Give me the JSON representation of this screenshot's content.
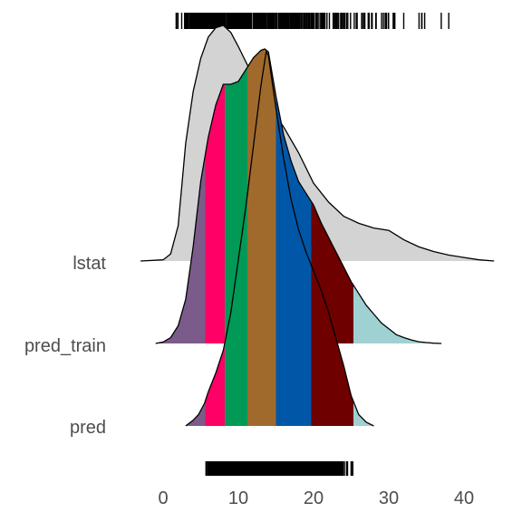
{
  "chart_data": {
    "type": "ridgeline",
    "title": "",
    "xlabel": "",
    "ylabel": "",
    "xlim": [
      -3,
      44
    ],
    "x_ticks": [
      0,
      10,
      20,
      30,
      40
    ],
    "rows": [
      "lstat",
      "pred_train",
      "pred"
    ],
    "lstat_density": {
      "x": [
        -3,
        0,
        1,
        2,
        3,
        4,
        5,
        6,
        7,
        8,
        9,
        10,
        12,
        14,
        16,
        18,
        20,
        22,
        24,
        26,
        28,
        30,
        32,
        34,
        36,
        38,
        40,
        42,
        44
      ],
      "height": [
        0,
        0.005,
        0.03,
        0.15,
        0.5,
        0.72,
        0.86,
        0.95,
        0.99,
        1.0,
        0.97,
        0.91,
        0.78,
        0.66,
        0.57,
        0.46,
        0.33,
        0.25,
        0.19,
        0.16,
        0.14,
        0.13,
        0.09,
        0.06,
        0.04,
        0.025,
        0.015,
        0.005,
        0
      ]
    },
    "pred_train_density": {
      "x": [
        -1,
        0,
        1,
        2,
        3,
        4,
        5,
        6,
        7,
        8,
        9,
        10,
        11,
        12,
        13,
        13.5,
        14,
        15,
        16,
        17,
        18,
        19,
        20,
        21,
        22,
        23,
        24,
        25,
        26,
        27,
        28,
        29,
        30,
        31,
        32,
        33,
        34,
        35,
        36,
        37
      ],
      "height": [
        0,
        0.005,
        0.02,
        0.06,
        0.15,
        0.33,
        0.55,
        0.7,
        0.81,
        0.88,
        0.88,
        0.89,
        0.93,
        0.97,
        0.995,
        1.0,
        0.99,
        0.84,
        0.71,
        0.62,
        0.55,
        0.51,
        0.47,
        0.41,
        0.36,
        0.31,
        0.26,
        0.21,
        0.17,
        0.13,
        0.1,
        0.07,
        0.05,
        0.03,
        0.02,
        0.012,
        0.006,
        0.003,
        0.001,
        0
      ]
    },
    "pred_density": {
      "x": [
        3,
        4,
        4.7,
        5.5,
        6,
        7,
        8,
        9,
        10,
        11,
        12,
        13,
        13.7,
        14,
        15,
        16,
        17,
        18,
        19,
        20,
        21,
        22,
        23,
        24,
        25,
        26,
        27,
        28
      ],
      "height": [
        0,
        0.015,
        0.03,
        0.06,
        0.09,
        0.14,
        0.2,
        0.3,
        0.44,
        0.58,
        0.74,
        0.9,
        0.99,
        0.98,
        0.84,
        0.71,
        0.6,
        0.52,
        0.46,
        0.41,
        0.36,
        0.3,
        0.23,
        0.16,
        0.08,
        0.03,
        0.01,
        0
      ]
    },
    "fill_bands": [
      {
        "from": -10,
        "to": 5.6,
        "color": "#7B5B89"
      },
      {
        "from": 5.6,
        "to": 8.2,
        "color": "#FF0066"
      },
      {
        "from": 8.2,
        "to": 11.2,
        "color": "#009955"
      },
      {
        "from": 11.2,
        "to": 15.0,
        "color": "#A06A2D"
      },
      {
        "from": 15.0,
        "to": 19.7,
        "color": "#0057A8"
      },
      {
        "from": 19.7,
        "to": 25.3,
        "color": "#6E0000"
      },
      {
        "from": 25.3,
        "to": 50,
        "color": "#9FD1D3"
      }
    ],
    "lstat_fill_color": "#d3d3d3",
    "rug_top_x": [
      1.73,
      1.92,
      1.98,
      2.47,
      2.87,
      2.88,
      2.94,
      2.96,
      2.97,
      3.01,
      3.11,
      3.16,
      3.26,
      3.32,
      3.33,
      3.53,
      3.54,
      3.56,
      3.57,
      3.59,
      3.7,
      3.73,
      3.76,
      3.81,
      3.92,
      3.95,
      4.03,
      4.14,
      4.16,
      4.21,
      4.32,
      4.45,
      4.5,
      4.56,
      4.59,
      4.61,
      4.63,
      4.67,
      4.69,
      4.7,
      4.73,
      4.74,
      4.81,
      4.82,
      4.84,
      4.85,
      4.86,
      4.97,
      4.98,
      5.03,
      5.08,
      5.1,
      5.12,
      5.19,
      5.21,
      5.25,
      5.28,
      5.29,
      5.33,
      5.39,
      5.49,
      5.5,
      5.52,
      5.57,
      5.64,
      5.68,
      5.7,
      5.77,
      5.81,
      5.89,
      5.9,
      5.91,
      5.98,
      5.99,
      6.05,
      6.07,
      6.12,
      6.15,
      6.19,
      6.21,
      6.27,
      6.29,
      6.36,
      6.43,
      6.47,
      6.48,
      6.53,
      6.56,
      6.58,
      6.59,
      6.62,
      6.65,
      6.68,
      6.72,
      6.73,
      6.75,
      6.78,
      6.86,
      6.87,
      6.9,
      6.92,
      6.93,
      7.01,
      7.12,
      7.14,
      7.18,
      7.19,
      7.2,
      7.22,
      7.26,
      7.34,
      7.37,
      7.39,
      7.43,
      7.44,
      7.51,
      7.53,
      7.54,
      7.56,
      7.6,
      7.67,
      7.7,
      7.73,
      7.74,
      7.79,
      7.83,
      7.85,
      7.88,
      7.9,
      8.01,
      8.05,
      8.1,
      8.16,
      8.2,
      8.23,
      8.26,
      8.43,
      8.44,
      8.47,
      8.51,
      8.58,
      8.61,
      8.65,
      8.67,
      8.77,
      8.79,
      8.81,
      8.88,
      8.93,
      9.04,
      9.08,
      9.09,
      9.1,
      9.14,
      9.16,
      9.22,
      9.25,
      9.28,
      9.29,
      9.38,
      9.42,
      9.43,
      9.45,
      9.47,
      9.5,
      9.51,
      9.52,
      9.53,
      9.55,
      9.59,
      9.62,
      9.64,
      9.67,
      9.68,
      9.69,
      9.71,
      9.74,
      9.8,
      9.81,
      9.88,
      9.93,
      9.97,
      10.11,
      10.13,
      10.15,
      10.16,
      10.19,
      10.21,
      10.24,
      10.26,
      10.27,
      10.29,
      10.3,
      10.36,
      10.4,
      10.42,
      10.45,
      10.5,
      10.53,
      10.56,
      10.58,
      10.59,
      10.63,
      10.74,
      10.87,
      10.88,
      10.97,
      11.1,
      11.12,
      11.22,
      11.25,
      11.28,
      11.32,
      11.34,
      11.38,
      11.41,
      11.45,
      11.48,
      11.5,
      11.64,
      11.65,
      11.66,
      11.69,
      11.72,
      11.74,
      11.97,
      11.98,
      12.01,
      12.03,
      12.04,
      12.12,
      12.13,
      12.14,
      12.26,
      12.27,
      12.33,
      12.34,
      12.4,
      12.43,
      12.5,
      12.6,
      12.64,
      12.67,
      12.79,
      12.8,
      12.86,
      12.87,
      12.92,
      12.93,
      13.0,
      13.04,
      13.09,
      13.11,
      13.15,
      13.22,
      13.27,
      13.28,
      13.33,
      13.35,
      13.44,
      13.45,
      13.51,
      13.59,
      13.61,
      13.65,
      13.83,
      13.98,
      13.99,
      14.0,
      14.1,
      14.13,
      14.15,
      14.19,
      14.27,
      14.33,
      14.36,
      14.37,
      14.43,
      14.44,
      14.52,
      14.59,
      14.64,
      14.65,
      14.66,
      14.67,
      14.69,
      14.7,
      14.76,
      14.79,
      14.8,
      14.81,
      14.98,
      15.02,
      15.03,
      15.1,
      15.12,
      15.17,
      15.37,
      15.39,
      15.55,
      15.69,
      15.7,
      15.71,
      15.76,
      15.79,
      15.84,
      15.94,
      16.03,
      16.14,
      16.2,
      16.21,
      16.22,
      16.23,
      16.29,
      16.3,
      16.35,
      16.42,
      16.44,
      16.47,
      16.51,
      16.59,
      16.65,
      16.74,
      16.9,
      16.94,
      16.96,
      17.09,
      17.1,
      17.11,
      17.12,
      17.15,
      17.16,
      17.19,
      17.21,
      17.27,
      17.28,
      17.31,
      17.44,
      17.58,
      17.6,
      17.64,
      17.73,
      17.79,
      17.92,
      17.93,
      18.03,
      18.05,
      18.06,
      18.07,
      18.13,
      18.14,
      18.33,
      18.34,
      18.35,
      18.46,
      18.66,
      18.68,
      18.71,
      18.72,
      18.76,
      18.8,
      18.85,
      19.01,
      19.15,
      19.31,
      19.37,
      19.52,
      19.69,
      19.77,
      19.78,
      19.88,
      19.92,
      20.08,
      20.31,
      20.32,
      20.34,
      20.45,
      20.62,
      20.85,
      21.02,
      21.08,
      21.14,
      21.22,
      21.24,
      21.32,
      21.45,
      21.46,
      21.52,
      21.78,
      22.11,
      22.6,
      22.74,
      22.88,
      22.98,
      23.09,
      23.24,
      23.27,
      23.29,
      23.34,
      23.6,
      23.69,
      23.79,
      23.97,
      23.98,
      24.08,
      24.1,
      24.16,
      24.39,
      24.56,
      24.91,
      25.41,
      25.68,
      25.79,
      26.4,
      26.42,
      26.45,
      26.64,
      26.77,
      26.82,
      27.26,
      27.38,
      27.71,
      27.8,
      28.28,
      28.32,
      29.05,
      29.29,
      29.53,
      29.55,
      29.68,
      29.93,
      29.97,
      30.59,
      30.62,
      30.63,
      30.81,
      31.99,
      34.02,
      34.37,
      34.41,
      34.77,
      36.98,
      37.97
    ],
    "rug_bottom_x": [
      5.71,
      5.89,
      6.02,
      6.13,
      6.24,
      6.35,
      6.46,
      6.58,
      6.69,
      6.8,
      6.92,
      7.03,
      7.14,
      7.26,
      7.37,
      7.48,
      7.59,
      7.71,
      7.82,
      7.93,
      8.05,
      8.16,
      8.27,
      8.39,
      8.5,
      8.61,
      8.73,
      8.84,
      8.95,
      9.07,
      9.18,
      9.29,
      9.41,
      9.52,
      9.63,
      9.74,
      9.86,
      9.97,
      10.08,
      10.2,
      10.31,
      10.42,
      10.54,
      10.65,
      10.76,
      10.87,
      10.99,
      11.1,
      11.21,
      11.33,
      11.44,
      11.55,
      11.67,
      11.78,
      11.89,
      12.01,
      12.12,
      12.23,
      12.34,
      12.46,
      12.57,
      12.68,
      12.8,
      12.91,
      13.02,
      13.14,
      13.25,
      13.36,
      13.48,
      13.59,
      13.7,
      13.81,
      13.93,
      14.04,
      14.15,
      14.27,
      14.38,
      14.49,
      14.61,
      14.72,
      14.83,
      14.94,
      15.06,
      15.17,
      15.28,
      15.4,
      15.51,
      15.62,
      15.74,
      15.85,
      15.96,
      16.08,
      16.19,
      16.3,
      16.41,
      16.53,
      16.64,
      16.75,
      16.87,
      16.98,
      17.09,
      17.21,
      17.32,
      17.43,
      17.55,
      17.66,
      17.77,
      17.88,
      18.0,
      18.11,
      18.22,
      18.34,
      18.45,
      18.56,
      18.68,
      18.79,
      18.9,
      19.02,
      19.13,
      19.24,
      19.35,
      19.47,
      19.58,
      19.69,
      19.81,
      19.92,
      20.03,
      20.15,
      20.26,
      20.37,
      20.48,
      20.6,
      20.71,
      20.82,
      20.94,
      21.05,
      21.16,
      21.28,
      21.39,
      21.5,
      21.62,
      21.73,
      21.84,
      21.95,
      22.07,
      22.18,
      22.29,
      22.41,
      22.52,
      22.63,
      22.75,
      22.86,
      22.97,
      23.09,
      23.2,
      23.31,
      23.42,
      23.54,
      23.65,
      23.76,
      23.88,
      24.1,
      24.4,
      24.5,
      25.0,
      25.2
    ]
  }
}
